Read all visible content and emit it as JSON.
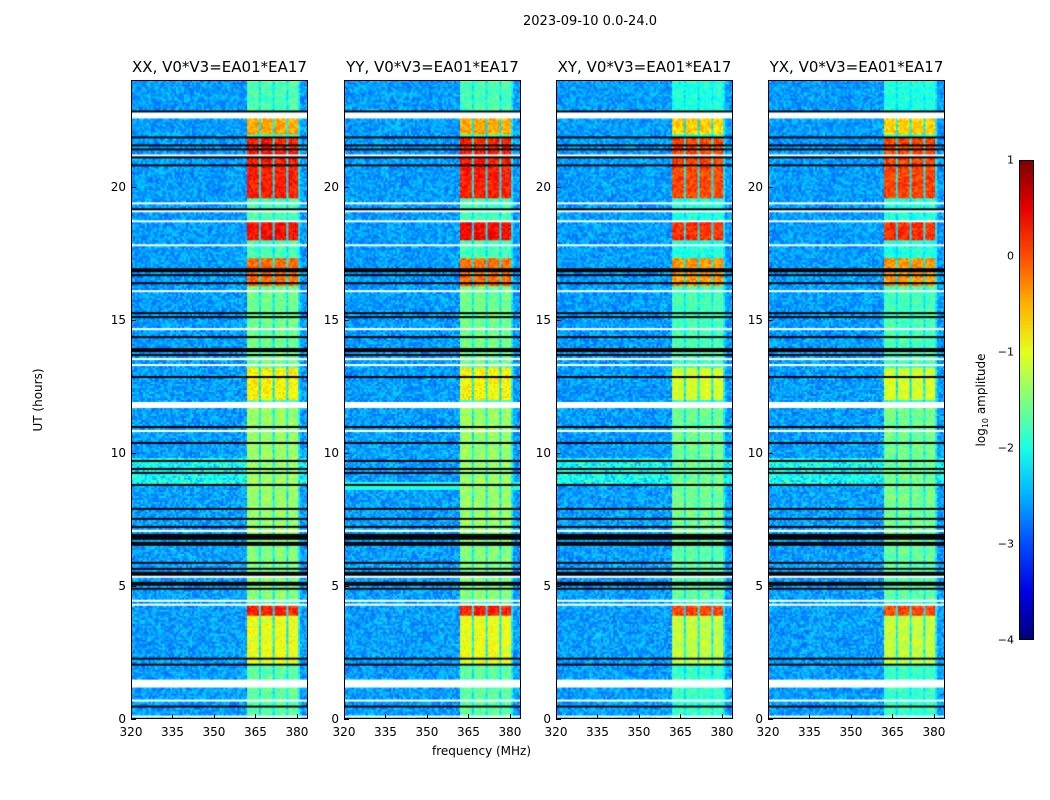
{
  "chart_data": {
    "type": "heatmap",
    "title": "2023-09-10 0.0-24.0",
    "xlabel": "frequency (MHz)",
    "ylabel": "UT (hours)",
    "xlim": [
      320,
      384
    ],
    "ylim": [
      0,
      24
    ],
    "xticks": [
      "320",
      "335",
      "350",
      "365",
      "380"
    ],
    "yticks": [
      "0",
      "5",
      "10",
      "15",
      "20"
    ],
    "panels": [
      {
        "title": "XX, V0*V3=EA01*EA17"
      },
      {
        "title": "YY, V0*V3=EA01*EA17"
      },
      {
        "title": "XY, V0*V3=EA01*EA17"
      },
      {
        "title": "YX, V0*V3=EA01*EA17"
      }
    ],
    "colorbar": {
      "label_prefix": "log",
      "label_sub": "10",
      "label_suffix": " amplitude",
      "range": [
        -4,
        1
      ],
      "ticks": [
        "1",
        "0",
        "−1",
        "−2",
        "−3",
        "−4"
      ],
      "colormap": "jet"
    },
    "features": {
      "rfi_band_mhz": [
        362,
        381
      ],
      "flagged_rows_hours": [
        [
          1.3,
          1.5
        ],
        [
          11.7,
          11.9
        ],
        [
          22.6,
          22.8
        ]
      ],
      "bright_intervals_hours": [
        [
          2.0,
          4.3
        ],
        [
          16.3,
          17.3
        ],
        [
          18.0,
          18.7
        ],
        [
          19.6,
          21.9
        ],
        [
          22.0,
          22.6
        ]
      ]
    }
  }
}
